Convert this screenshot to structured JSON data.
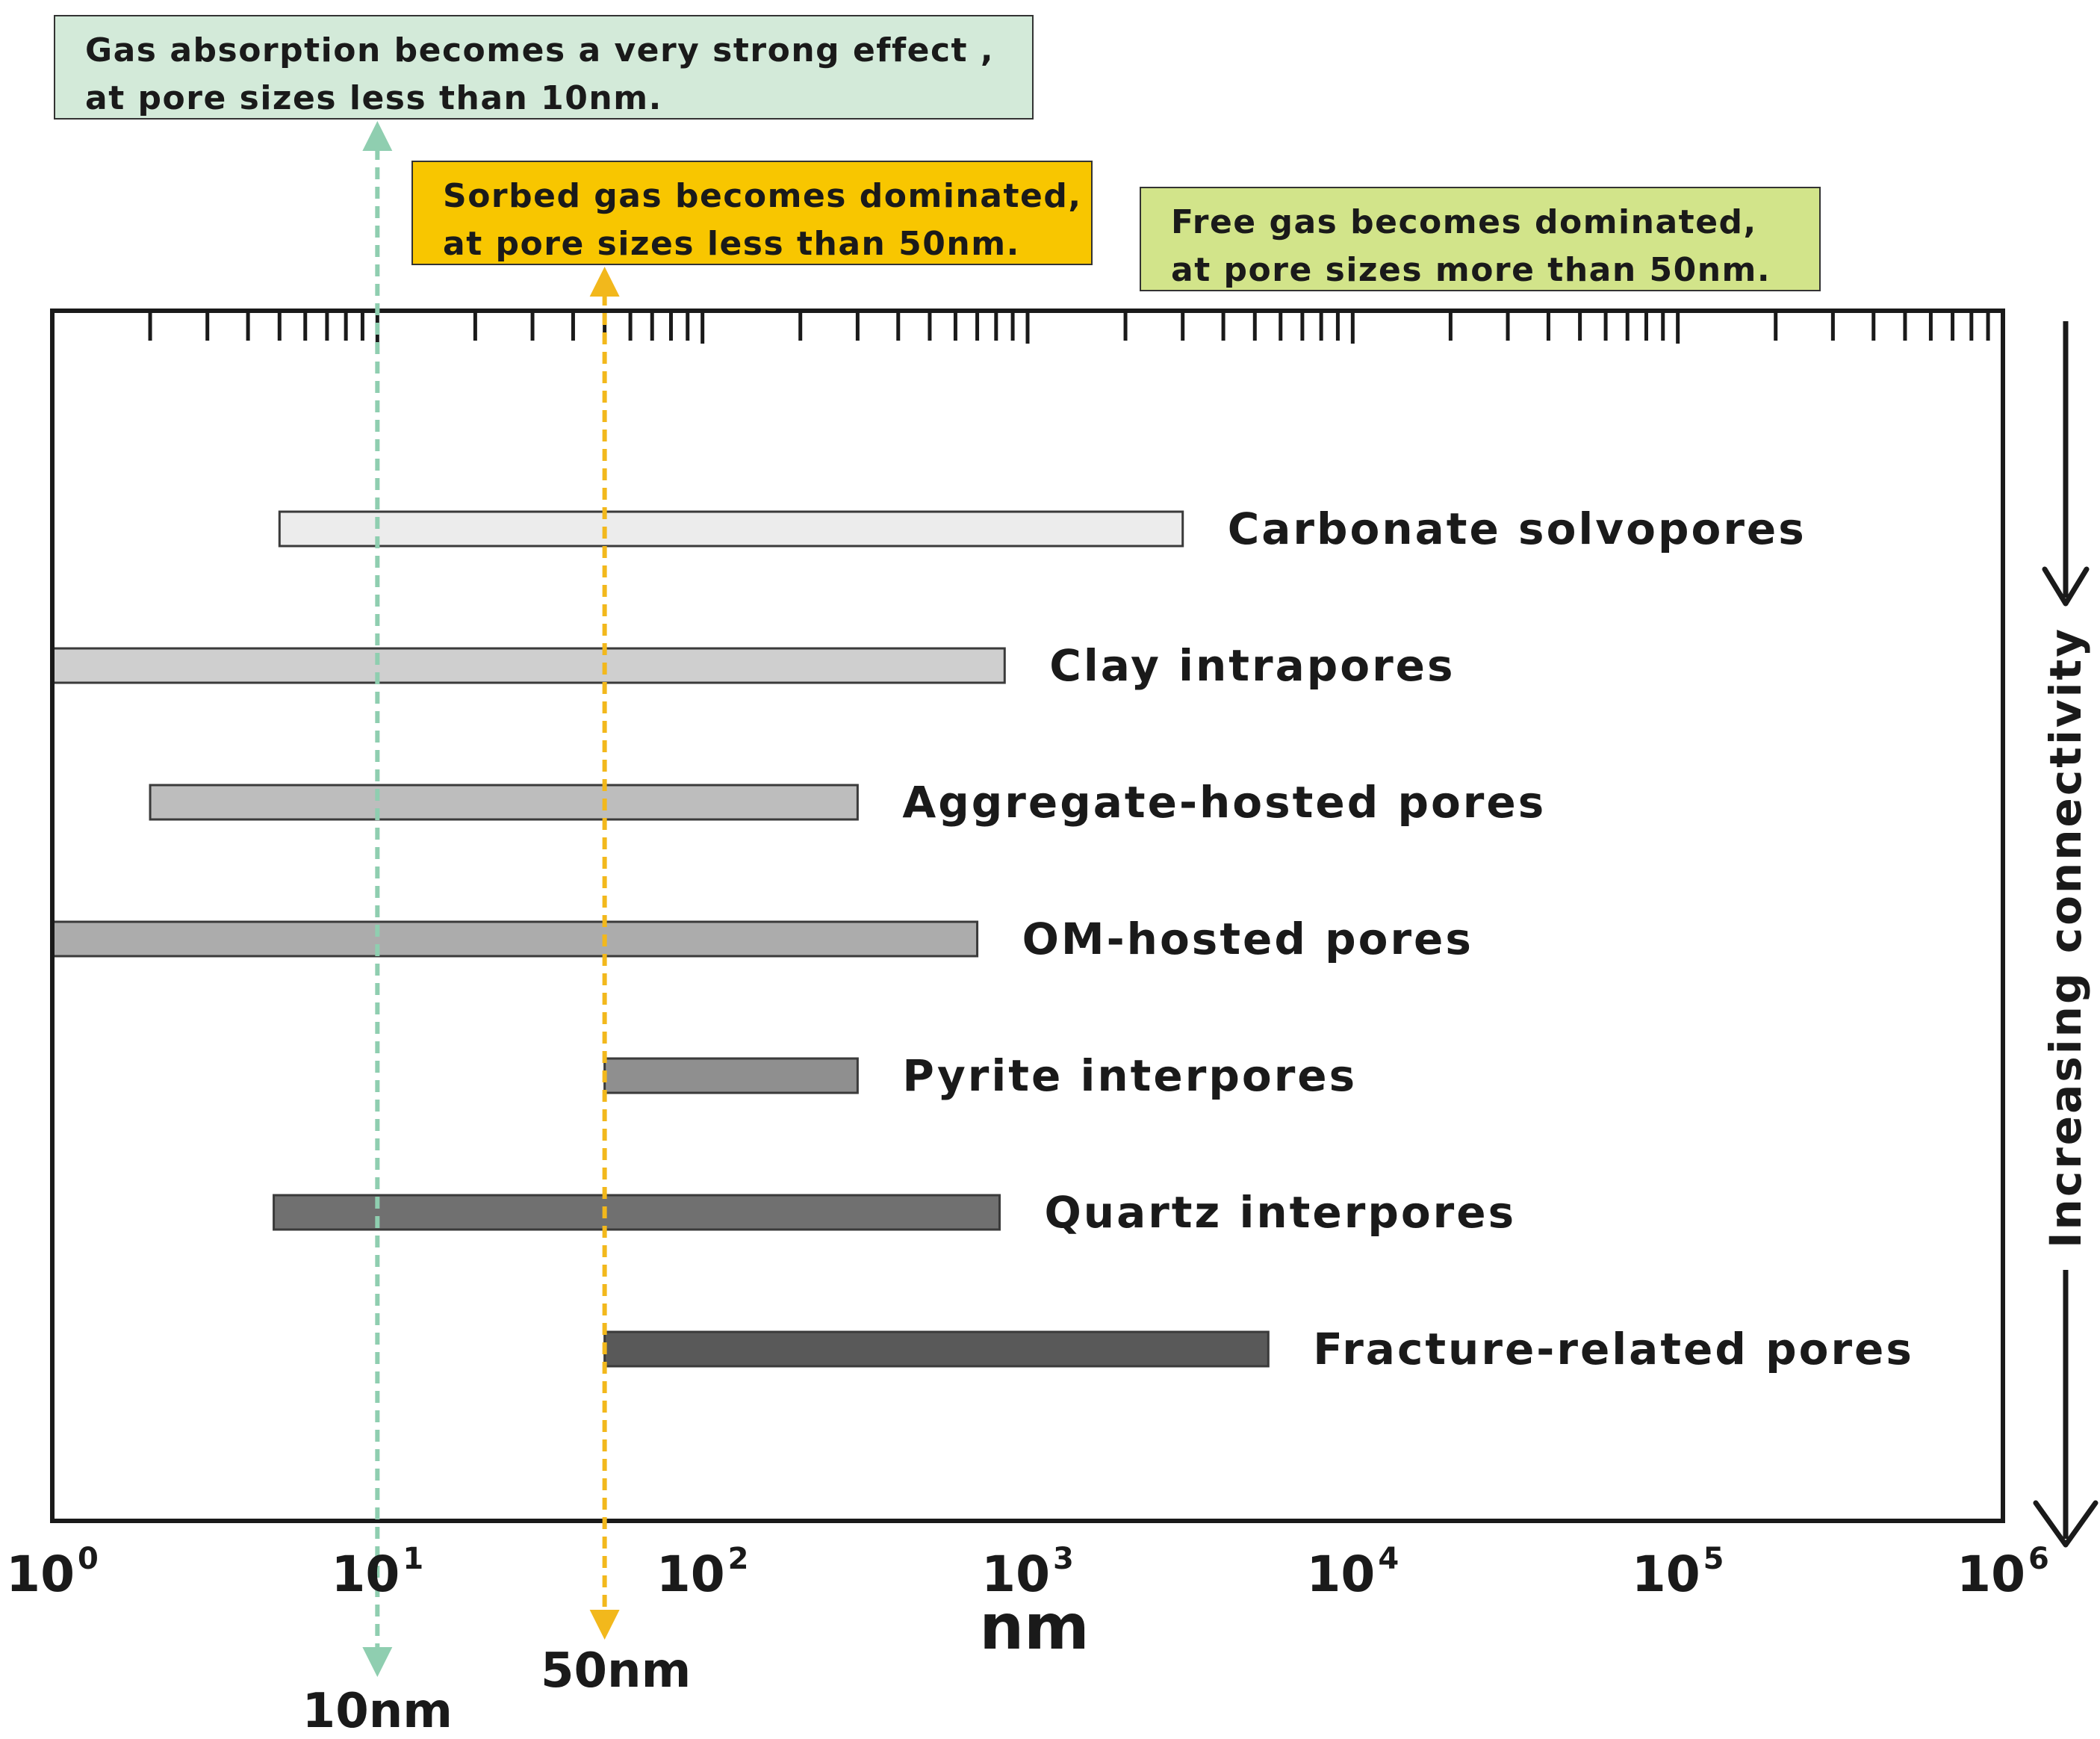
{
  "callouts": {
    "absorption": {
      "line1": "Gas absorption becomes a very strong effect ,",
      "line2": "at pore sizes less than 10nm.",
      "color": "#d3ead9"
    },
    "sorbed": {
      "line1": "Sorbed gas becomes dominated,",
      "line2": "at pore sizes less than 50nm.",
      "color": "#f8c600"
    },
    "free": {
      "line1": "Free gas becomes dominated,",
      "line2": "at pore sizes more than 50nm.",
      "color": "#d2e48a"
    }
  },
  "chart_data": {
    "type": "range-bar",
    "x_scale": "log10",
    "xlabel": "nm",
    "xlim": [
      1,
      1000000
    ],
    "x_ticks": [
      {
        "value": 1,
        "base": "10",
        "exp": "0"
      },
      {
        "value": 10,
        "base": "10",
        "exp": "1"
      },
      {
        "value": 100,
        "base": "10",
        "exp": "2"
      },
      {
        "value": 1000,
        "base": "10",
        "exp": "3"
      },
      {
        "value": 10000,
        "base": "10",
        "exp": "4"
      },
      {
        "value": 100000,
        "base": "10",
        "exp": "5"
      },
      {
        "value": 1000000,
        "base": "10",
        "exp": "6"
      }
    ],
    "categories": [
      "Carbonate solvopores",
      "Clay intrapores",
      "Aggregate-hosted pores",
      "OM-hosted pores",
      "Pyrite interpores",
      "Quartz interpores",
      "Fracture-related pores"
    ],
    "ranges": [
      {
        "min": 5,
        "max": 3000
      },
      {
        "min": 1,
        "max": 850
      },
      {
        "min": 2,
        "max": 300
      },
      {
        "min": 1,
        "max": 700
      },
      {
        "min": 50,
        "max": 300
      },
      {
        "min": 4.8,
        "max": 820
      },
      {
        "min": 50,
        "max": 5500
      }
    ],
    "bar_colors": [
      "#ececec",
      "#cfcfcf",
      "#bdbdbd",
      "#acacac",
      "#8f8f8f",
      "#707070",
      "#595959"
    ],
    "reference_lines": [
      {
        "value": 10,
        "label": "10nm",
        "color": "#8fceb0"
      },
      {
        "value": 50,
        "label": "50nm",
        "color": "#f2b81c"
      }
    ],
    "side_label": "Increasing connectivity"
  }
}
